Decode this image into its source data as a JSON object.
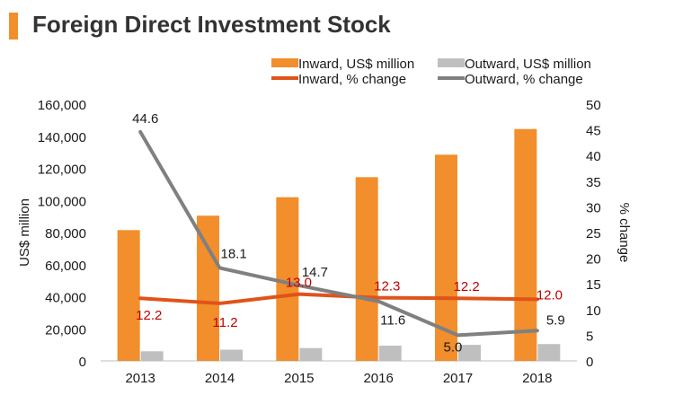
{
  "title": "Foreign Direct Investment Stock",
  "chart_data": {
    "type": "bar",
    "categories": [
      "2013",
      "2014",
      "2015",
      "2016",
      "2017",
      "2018"
    ],
    "ylabel": "US$ million",
    "y2label": "% change",
    "ylim": [
      0,
      160000
    ],
    "y2lim": [
      0,
      50
    ],
    "yticks": [
      "0",
      "20,000",
      "40,000",
      "60,000",
      "80,000",
      "100,000",
      "120,000",
      "140,000",
      "160,000"
    ],
    "y2ticks": [
      "0",
      "5",
      "10",
      "15",
      "20",
      "25",
      "30",
      "35",
      "40",
      "45",
      "50"
    ],
    "series": [
      {
        "name": "Inward, US$ million",
        "kind": "bar",
        "axis": "left",
        "color": "#f28e2b",
        "values": [
          81500,
          90500,
          102000,
          114500,
          128500,
          144500
        ]
      },
      {
        "name": "Outward, US$ million",
        "kind": "bar",
        "axis": "left",
        "color": "#bfbfbf",
        "values": [
          6000,
          7000,
          8000,
          9500,
          10000,
          10500
        ]
      },
      {
        "name": "Inward, % change",
        "kind": "line",
        "axis": "right",
        "color": "#e0531a",
        "values": [
          12.2,
          11.2,
          13.0,
          12.3,
          12.2,
          12.0
        ],
        "labels": [
          "12.2",
          "11.2",
          "13.0",
          "12.3",
          "12.2",
          "12.0"
        ],
        "label_color": "#c00000"
      },
      {
        "name": "Outward, % change",
        "kind": "line",
        "axis": "right",
        "color": "#808080",
        "values": [
          44.6,
          18.1,
          14.7,
          11.6,
          5.0,
          5.9
        ],
        "labels": [
          "44.6",
          "18.1",
          "14.7",
          "11.6",
          "5.0",
          "5.9"
        ],
        "label_color": "#1a1a1a"
      }
    ]
  }
}
